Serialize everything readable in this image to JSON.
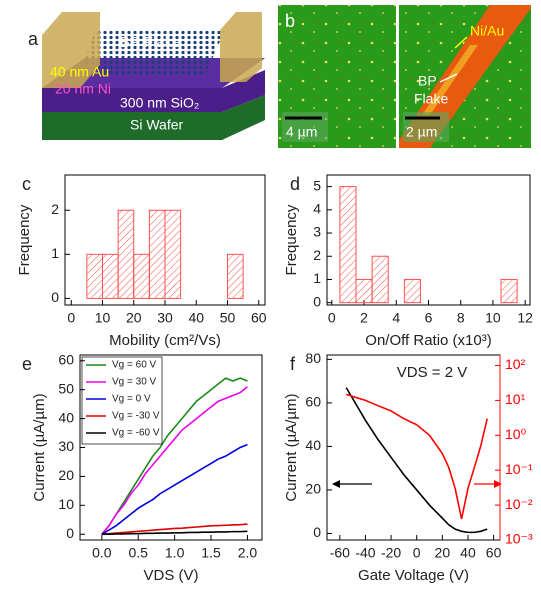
{
  "schematic": {
    "panel_label": "a",
    "labels": [
      "BP Flake",
      "40 nm Au",
      "20 nm Ni",
      "300 nm SiO₂",
      "Si Wafer"
    ]
  },
  "micrographs": {
    "panel_label": "b",
    "scale_bars": [
      "4 µm",
      "2 µm"
    ],
    "labels": [
      "Ni/Au",
      "BP",
      "Flake"
    ]
  },
  "chart_data": [
    {
      "type": "histogram",
      "panel_label": "c",
      "xlabel": "Mobility (cm²/Vs)",
      "ylabel": "Frequency",
      "bins": [
        5,
        10,
        15,
        20,
        25,
        30,
        35,
        40,
        45,
        50,
        55
      ],
      "counts": [
        1,
        1,
        2,
        1,
        2,
        2,
        0,
        0,
        0,
        1
      ],
      "color": "#ff5050",
      "xlim": [
        -2,
        62
      ],
      "xticks": [
        0,
        10,
        20,
        30,
        40,
        50,
        60
      ],
      "ylim": [
        -0.15,
        2.8
      ],
      "yticks": [
        0,
        1,
        2
      ]
    },
    {
      "type": "histogram",
      "panel_label": "d",
      "xlabel": "On/Off Ratio (x10³)",
      "ylabel": "Frequency",
      "bins": [
        0.5,
        1.5,
        2.5,
        3.5,
        4.5,
        5.5,
        6.5,
        7.5,
        8.5,
        9.5,
        10.5,
        11.5
      ],
      "counts": [
        5,
        1,
        2,
        0,
        1,
        0,
        0,
        0,
        0,
        0,
        1
      ],
      "color": "#ff5050",
      "xlim": [
        -0.3,
        12.3
      ],
      "xticks": [
        0,
        2,
        4,
        6,
        8,
        10,
        12
      ],
      "ylim": [
        -0.1,
        5.5
      ],
      "yticks": [
        0,
        1,
        2,
        3,
        4,
        5
      ]
    },
    {
      "type": "line",
      "panel_label": "e",
      "xlabel": "VDS (V)",
      "ylabel": "Current (µA/µm)",
      "legend": "upper left",
      "x": [
        0,
        0.1,
        0.2,
        0.3,
        0.4,
        0.5,
        0.6,
        0.7,
        0.8,
        0.9,
        1.0,
        1.1,
        1.2,
        1.3,
        1.4,
        1.5,
        1.6,
        1.7,
        1.8,
        1.9,
        2.0
      ],
      "series": [
        {
          "name": "Vg = 60 V",
          "color": "#1a8a1a",
          "values": [
            0,
            3,
            7,
            11,
            15,
            19,
            23,
            27,
            30,
            34,
            37,
            40,
            43,
            46,
            48,
            50,
            52,
            54,
            53,
            54,
            53
          ]
        },
        {
          "name": "Vg = 30 V",
          "color": "#ee00ee",
          "values": [
            0,
            3,
            7,
            10,
            14,
            17,
            21,
            24,
            27,
            30,
            33,
            36,
            38,
            40,
            42,
            44,
            46,
            47,
            48,
            49,
            51
          ]
        },
        {
          "name": "Vg = 0 V",
          "color": "#0000dd",
          "values": [
            0,
            1.5,
            3,
            5,
            7,
            9,
            10.5,
            12,
            14,
            15.5,
            17,
            18.5,
            20,
            21.5,
            23,
            24.5,
            26,
            27,
            28.5,
            30,
            31
          ]
        },
        {
          "name": "Vg = -30 V",
          "color": "#dd0000",
          "values": [
            0,
            0.2,
            0.4,
            0.6,
            0.8,
            1,
            1.2,
            1.4,
            1.6,
            1.8,
            2,
            2.1,
            2.3,
            2.5,
            2.7,
            2.9,
            3,
            3.1,
            3.2,
            3.3,
            3.5
          ]
        },
        {
          "name": "Vg = -60 V",
          "color": "#000000",
          "values": [
            0,
            0,
            0.1,
            0.1,
            0.2,
            0.2,
            0.3,
            0.3,
            0.4,
            0.4,
            0.5,
            0.5,
            0.6,
            0.6,
            0.7,
            0.7,
            0.8,
            0.8,
            0.9,
            0.9,
            1.0
          ]
        }
      ],
      "xlim": [
        -0.3,
        2.2
      ],
      "xticks": [
        {
          "value": 0,
          "label": "0.0"
        },
        0.5,
        {
          "value": 1,
          "label": "1.0"
        },
        1.5,
        {
          "value": 2,
          "label": "2.0"
        }
      ],
      "ylim": [
        -2,
        62
      ],
      "yticks": [
        0,
        10,
        20,
        30,
        40,
        50,
        60
      ]
    },
    {
      "type": "line",
      "panel_label": "f",
      "xlabel": "Gate Voltage (V)",
      "ylabel": "Current (µA/µm)",
      "annotation": "VDS = 2 V",
      "x": [
        -55,
        -50,
        -40,
        -30,
        -20,
        -10,
        0,
        10,
        20,
        25,
        30,
        35,
        40,
        45,
        50,
        55
      ],
      "series": [
        {
          "color": "#000000",
          "values": [
            67,
            62,
            52,
            43,
            35,
            27,
            20,
            13,
            7,
            4,
            2,
            1,
            0.5,
            0.5,
            1,
            2
          ]
        },
        {
          "color": "#ff0000",
          "axis": "y2",
          "values": [
            15,
            13,
            10,
            7,
            5,
            3,
            2,
            1,
            0.3,
            0.12,
            0.03,
            0.004,
            0.03,
            0.12,
            0.5,
            3
          ]
        }
      ],
      "xlim": [
        -70,
        65
      ],
      "xticks": [
        -60,
        -40,
        -20,
        0,
        20,
        40,
        60
      ],
      "ylim": [
        -3,
        82
      ],
      "yticks": [
        0,
        20,
        40,
        60,
        80
      ],
      "y2scale": "log",
      "y2lim": [
        0.001,
        200
      ],
      "y2ticks": [
        {
          "value": 0.001,
          "label": "10⁻³"
        },
        {
          "value": 0.01,
          "label": "10⁻²"
        },
        {
          "value": 0.1,
          "label": "10⁻¹"
        },
        {
          "value": 1,
          "label": "10⁰"
        },
        {
          "value": 10,
          "label": "10¹"
        },
        {
          "value": 100,
          "label": "10²"
        }
      ]
    }
  ]
}
